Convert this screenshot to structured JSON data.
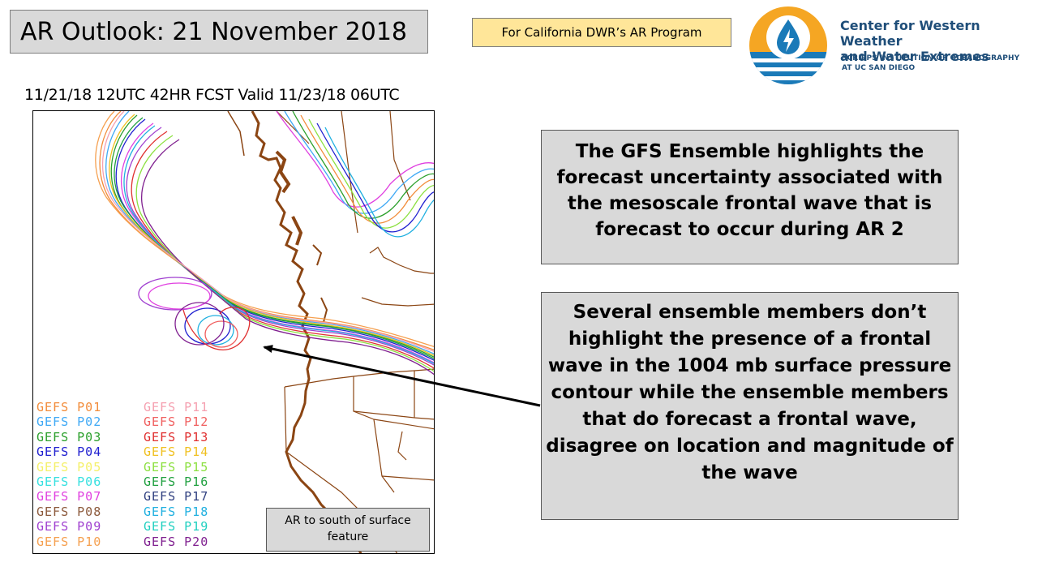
{
  "header": {
    "title": "AR Outlook: 21 November 2018",
    "tag": "For California DWR’s AR Program"
  },
  "org": {
    "name_line1": "Center for Western Weather",
    "name_line2": "and Water Extremes",
    "sub_line1": "SCRIPPS INSTITUTION OF OCEANOGRAPHY",
    "sub_line2": "AT UC SAN DIEGO"
  },
  "forecast": {
    "valid_line": "11/21/18  12UTC  42HR FCST  Valid 11/23/18  06UTC"
  },
  "legend": {
    "members": [
      {
        "label": "GEFS P01",
        "color": "#f28c3a"
      },
      {
        "label": "GEFS P02",
        "color": "#3fa9f5"
      },
      {
        "label": "GEFS P03",
        "color": "#2ca02c"
      },
      {
        "label": "GEFS P04",
        "color": "#2020d0"
      },
      {
        "label": "GEFS P05",
        "color": "#f5f06a"
      },
      {
        "label": "GEFS P06",
        "color": "#37e0e0"
      },
      {
        "label": "GEFS P07",
        "color": "#e040e0"
      },
      {
        "label": "GEFS P08",
        "color": "#8c5a3c"
      },
      {
        "label": "GEFS P09",
        "color": "#a040d0"
      },
      {
        "label": "GEFS P10",
        "color": "#f5a050"
      },
      {
        "label": "GEFS P11",
        "color": "#f5a0b0"
      },
      {
        "label": "GEFS P12",
        "color": "#f06060"
      },
      {
        "label": "GEFS P13",
        "color": "#e03030"
      },
      {
        "label": "GEFS P14",
        "color": "#f0c020"
      },
      {
        "label": "GEFS P15",
        "color": "#8ce040"
      },
      {
        "label": "GEFS P16",
        "color": "#20a040"
      },
      {
        "label": "GEFS P17",
        "color": "#304080"
      },
      {
        "label": "GEFS P18",
        "color": "#20b0e0"
      },
      {
        "label": "GEFS P19",
        "color": "#20d0c0"
      },
      {
        "label": "GEFS P20",
        "color": "#802090"
      }
    ]
  },
  "map_note": {
    "text": "AR to south of surface feature"
  },
  "callouts": {
    "top": "The GFS Ensemble highlights the forecast uncertainty associated with the mesoscale frontal wave that is forecast to occur during AR 2",
    "bottom": "Several ensemble members don’t highlight the presence of a frontal wave in the 1004 mb surface pressure contour while the ensemble members that do forecast a frontal wave, disagree on location and magnitude of the wave"
  },
  "colors": {
    "coastline": "#8b4513",
    "box_gray": "#d9d9d9",
    "tag_yellow": "#ffe699",
    "org_blue": "#1f4e79",
    "logo_orange": "#f5a623",
    "logo_blue": "#1a7ab8"
  }
}
